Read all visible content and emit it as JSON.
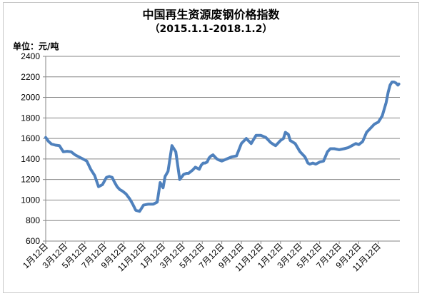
{
  "chart_data": {
    "type": "line",
    "title": "中国再生资源废钢价格指数",
    "subtitle": "（2015.1.1-2018.1.2）",
    "ylabel": "单位：元/吨",
    "xlabel": "",
    "ylim": [
      600,
      2400
    ],
    "yticks": [
      600,
      800,
      1000,
      1200,
      1400,
      1600,
      1800,
      2000,
      2200,
      2400
    ],
    "xticks": [
      "1月12日",
      "3月12日",
      "5月12日",
      "7月12日",
      "9月12日",
      "11月12日",
      "1月12日",
      "3月12日",
      "5月12日",
      "7月12日",
      "9月12日",
      "11月12日",
      "1月12日",
      "3月12日",
      "5月12日",
      "7月12日",
      "9月12日",
      "11月12日"
    ],
    "x_unit": "months since 2015-01",
    "grid": true,
    "legend": "none",
    "line_color": "#4f81bd",
    "series": [
      {
        "x": [
          0,
          0.3,
          0.6,
          1.0,
          1.4,
          1.8,
          2.2,
          2.6,
          3.0,
          3.4,
          3.8,
          4.2,
          4.6,
          5.0,
          5.4,
          5.8,
          6.2,
          6.5,
          6.8,
          7.0,
          7.3,
          7.6,
          7.8,
          8.2,
          8.6,
          8.9,
          9.2,
          9.6,
          10.0,
          10.5,
          11.0,
          11.4,
          11.7,
          12.0,
          12.2,
          12.5,
          12.9,
          13.3,
          13.7,
          14.1,
          14.4,
          14.6,
          15.0,
          15.3,
          15.7,
          15.9,
          16.1,
          16.3,
          16.5,
          16.7,
          16.9,
          17.1,
          17.3,
          17.5,
          17.7,
          18.0,
          18.5,
          19.0,
          19.5,
          20.0,
          20.5,
          21.0,
          21.5,
          22.0,
          22.5,
          23.0,
          23.3,
          23.5,
          23.8,
          24.0,
          24.3,
          24.5,
          24.8,
          25.0,
          25.5,
          26.0,
          26.5,
          26.8,
          27.0,
          27.3,
          27.6,
          28.0,
          28.4,
          28.8,
          29.1,
          29.5,
          30.0,
          30.5,
          30.9,
          31.3,
          31.7,
          32.0,
          32.4,
          32.8,
          33.2,
          33.6,
          34.0,
          34.4,
          34.8,
          35.0,
          35.2,
          35.4,
          35.6,
          35.8,
          36.0,
          36.1
        ],
        "values": [
          1610,
          1570,
          1545,
          1535,
          1530,
          1470,
          1475,
          1470,
          1440,
          1420,
          1400,
          1380,
          1300,
          1240,
          1130,
          1150,
          1220,
          1230,
          1220,
          1180,
          1130,
          1100,
          1090,
          1060,
          1010,
          960,
          900,
          890,
          950,
          960,
          960,
          980,
          1170,
          1120,
          1230,
          1280,
          1530,
          1470,
          1200,
          1250,
          1260,
          1260,
          1290,
          1320,
          1300,
          1340,
          1360,
          1360,
          1370,
          1410,
          1430,
          1440,
          1420,
          1400,
          1390,
          1380,
          1400,
          1420,
          1430,
          1550,
          1600,
          1550,
          1630,
          1630,
          1610,
          1560,
          1540,
          1530,
          1560,
          1580,
          1600,
          1660,
          1640,
          1580,
          1550,
          1470,
          1420,
          1360,
          1350,
          1360,
          1350,
          1370,
          1380,
          1470,
          1500,
          1500,
          1490,
          1500,
          1510,
          1530,
          1550,
          1540,
          1570,
          1660,
          1700,
          1740,
          1760,
          1820,
          1950,
          2050,
          2120,
          2150,
          2150,
          2140,
          2120,
          2130
        ]
      }
    ]
  }
}
